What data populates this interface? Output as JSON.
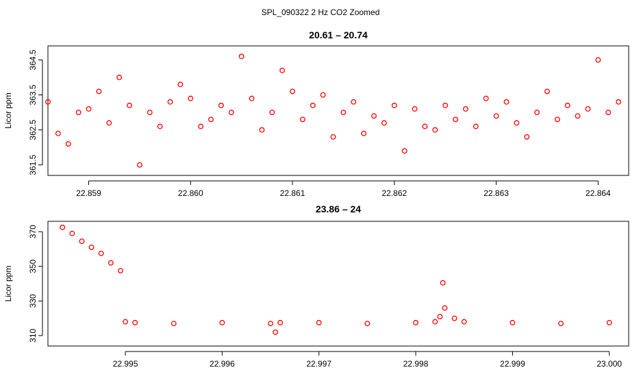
{
  "figure_title": "SPL_090322  2 Hz CO2 Zoomed",
  "colors": {
    "points": "#ff0000",
    "axes": "#000000",
    "background": "#ffffff"
  },
  "chart_data": [
    {
      "type": "scatter",
      "title": "20.61 – 20.74",
      "xlabel": "",
      "ylabel": "Licor ppm",
      "xlim": [
        22.8586,
        22.8643
      ],
      "ylim": [
        361.2,
        364.9
      ],
      "xticks": [
        22.859,
        22.86,
        22.861,
        22.862,
        22.863,
        22.864
      ],
      "xtick_labels": [
        "22.859",
        "22.860",
        "22.861",
        "22.862",
        "22.863",
        "22.864"
      ],
      "yticks": [
        361.5,
        362.5,
        363.5,
        364.5
      ],
      "ytick_labels": [
        "361.5",
        "362.5",
        "363.5",
        "364.5"
      ],
      "grid": false,
      "marker": "open circle",
      "x": [
        22.8586,
        22.8587,
        22.8588,
        22.8589,
        22.859,
        22.8591,
        22.8592,
        22.8593,
        22.8594,
        22.8595,
        22.8596,
        22.8597,
        22.8598,
        22.8599,
        22.86,
        22.8601,
        22.8602,
        22.8603,
        22.8604,
        22.8605,
        22.8606,
        22.8607,
        22.8608,
        22.8609,
        22.861,
        22.8611,
        22.8612,
        22.8613,
        22.8614,
        22.8615,
        22.8616,
        22.8617,
        22.8618,
        22.8619,
        22.862,
        22.8621,
        22.8622,
        22.8623,
        22.8624,
        22.8625,
        22.8626,
        22.8627,
        22.8628,
        22.8629,
        22.863,
        22.8631,
        22.8632,
        22.8633,
        22.8634,
        22.8635,
        22.8636,
        22.8637,
        22.8638,
        22.8639,
        22.864,
        22.8641,
        22.8642
      ],
      "y": [
        363.3,
        362.4,
        362.1,
        363.0,
        363.1,
        363.6,
        362.7,
        364.0,
        363.2,
        361.5,
        363.0,
        362.6,
        363.3,
        363.8,
        363.4,
        362.6,
        362.8,
        363.2,
        363.0,
        364.6,
        363.4,
        362.5,
        363.0,
        364.2,
        363.6,
        362.8,
        363.2,
        363.5,
        362.3,
        363.0,
        363.3,
        362.4,
        362.9,
        362.7,
        363.2,
        361.9,
        363.1,
        362.6,
        362.5,
        363.2,
        362.8,
        363.1,
        362.6,
        363.4,
        362.9,
        363.3,
        362.7,
        362.3,
        363.0,
        363.6,
        362.8,
        363.2,
        362.9,
        363.1,
        364.5,
        363.0,
        363.3
      ]
    },
    {
      "type": "scatter",
      "title": "23.86 – 24",
      "xlabel": "",
      "ylabel": "Licor ppm",
      "xlim": [
        22.9942,
        23.0002
      ],
      "ylim": [
        304,
        376
      ],
      "xticks": [
        22.995,
        22.996,
        22.997,
        22.998,
        22.999,
        23.0
      ],
      "xtick_labels": [
        "22.995",
        "22.996",
        "22.997",
        "22.998",
        "22.999",
        "23.000"
      ],
      "yticks": [
        310,
        330,
        350,
        370
      ],
      "ytick_labels": [
        "310",
        "330",
        "350",
        "370"
      ],
      "grid": false,
      "marker": "open circle",
      "x": [
        22.99435,
        22.99445,
        22.99455,
        22.99465,
        22.99475,
        22.99485,
        22.99495,
        22.995,
        22.9951,
        22.9955,
        22.996,
        22.9965,
        22.99655,
        22.9966,
        22.997,
        22.9975,
        22.998,
        22.9982,
        22.99825,
        22.99828,
        22.9983,
        22.9984,
        22.9985,
        22.999,
        22.9995,
        23.0
      ],
      "y": [
        372.5,
        369.0,
        364.5,
        361.0,
        357.5,
        352.0,
        347.5,
        318.0,
        317.5,
        317.0,
        317.5,
        317.0,
        312.0,
        317.5,
        317.5,
        317.0,
        317.5,
        318.0,
        321.0,
        340.5,
        326.0,
        320.0,
        318.0,
        317.5,
        317.0,
        317.5
      ]
    }
  ]
}
